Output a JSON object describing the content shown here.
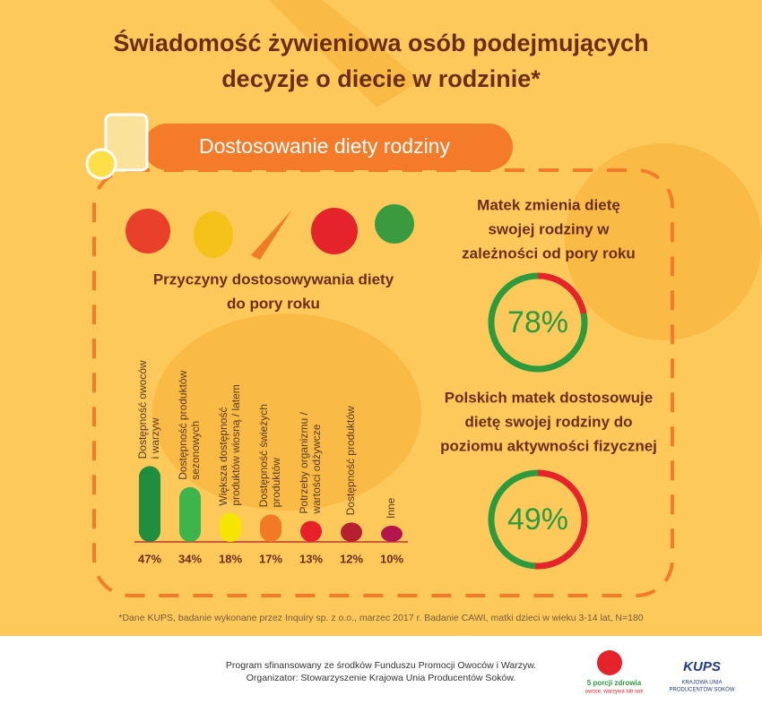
{
  "title_lines": [
    "Świadomość żywieniowa osób podejmujących",
    "decyzje o diecie w rodzinie*"
  ],
  "banner": "Dostosowanie diety rodziny",
  "chart_data": [
    {
      "type": "bar",
      "title_lines": [
        "Przyczyny dostosowywania diety",
        "do pory roku"
      ],
      "categories": [
        [
          "Dostępność owoców",
          "i warzyw"
        ],
        [
          "Dostępność produktów",
          "sezonowych"
        ],
        [
          "Większa dostępność",
          "produktów wiosną / latem"
        ],
        [
          "Dostępność świeżych",
          "produktów"
        ],
        [
          "Potrzeby organizmu /",
          "wartości odżywcze"
        ],
        [
          "Dostępność produktów"
        ],
        [
          "Inne"
        ]
      ],
      "values": [
        47,
        34,
        18,
        17,
        13,
        12,
        10
      ],
      "value_labels": [
        "47%",
        "34%",
        "18%",
        "17%",
        "13%",
        "12%",
        "10%"
      ],
      "colors": [
        "#1f8f3f",
        "#3db54a",
        "#f6e500",
        "#f07a26",
        "#e8202a",
        "#b51f30",
        "#b3164c"
      ]
    },
    {
      "type": "pie",
      "title_lines": [
        "Matek zmienia dietę",
        "swojej rodziny w",
        "zależności od pory roku"
      ],
      "values": [
        78
      ],
      "value_labels": [
        "78%"
      ],
      "colors": [
        "#2e9a3e",
        "#e5232a"
      ]
    },
    {
      "type": "pie",
      "title_lines": [
        "Polskich matek dostosowuje",
        "dietę swojej rodziny do",
        "poziomu aktywności fizycznej"
      ],
      "values": [
        49
      ],
      "value_labels": [
        "49%"
      ],
      "colors": [
        "#2e9a3e",
        "#e5232a"
      ]
    }
  ],
  "footnote": "*Dane KUPS, badanie wykonane przez Inquiry sp. z o.o., marzec 2017 r. Badanie CAWI, matki dzieci w wieku 3-14 lat, N=180",
  "footer_lines": [
    "Program sfinansowany ze środków Funduszu Promocji Owoców i Warzyw.",
    "Organizator: Stowarzyszenie Krajowa Unia Producentów Soków."
  ],
  "logos": {
    "left": [
      "5 porcji zdrowia",
      "owoce, warzywa lub sok"
    ],
    "right": [
      "KUPS",
      "KRAJOWA UNIA",
      "PRODUCENTÓW SOKÓW"
    ]
  }
}
